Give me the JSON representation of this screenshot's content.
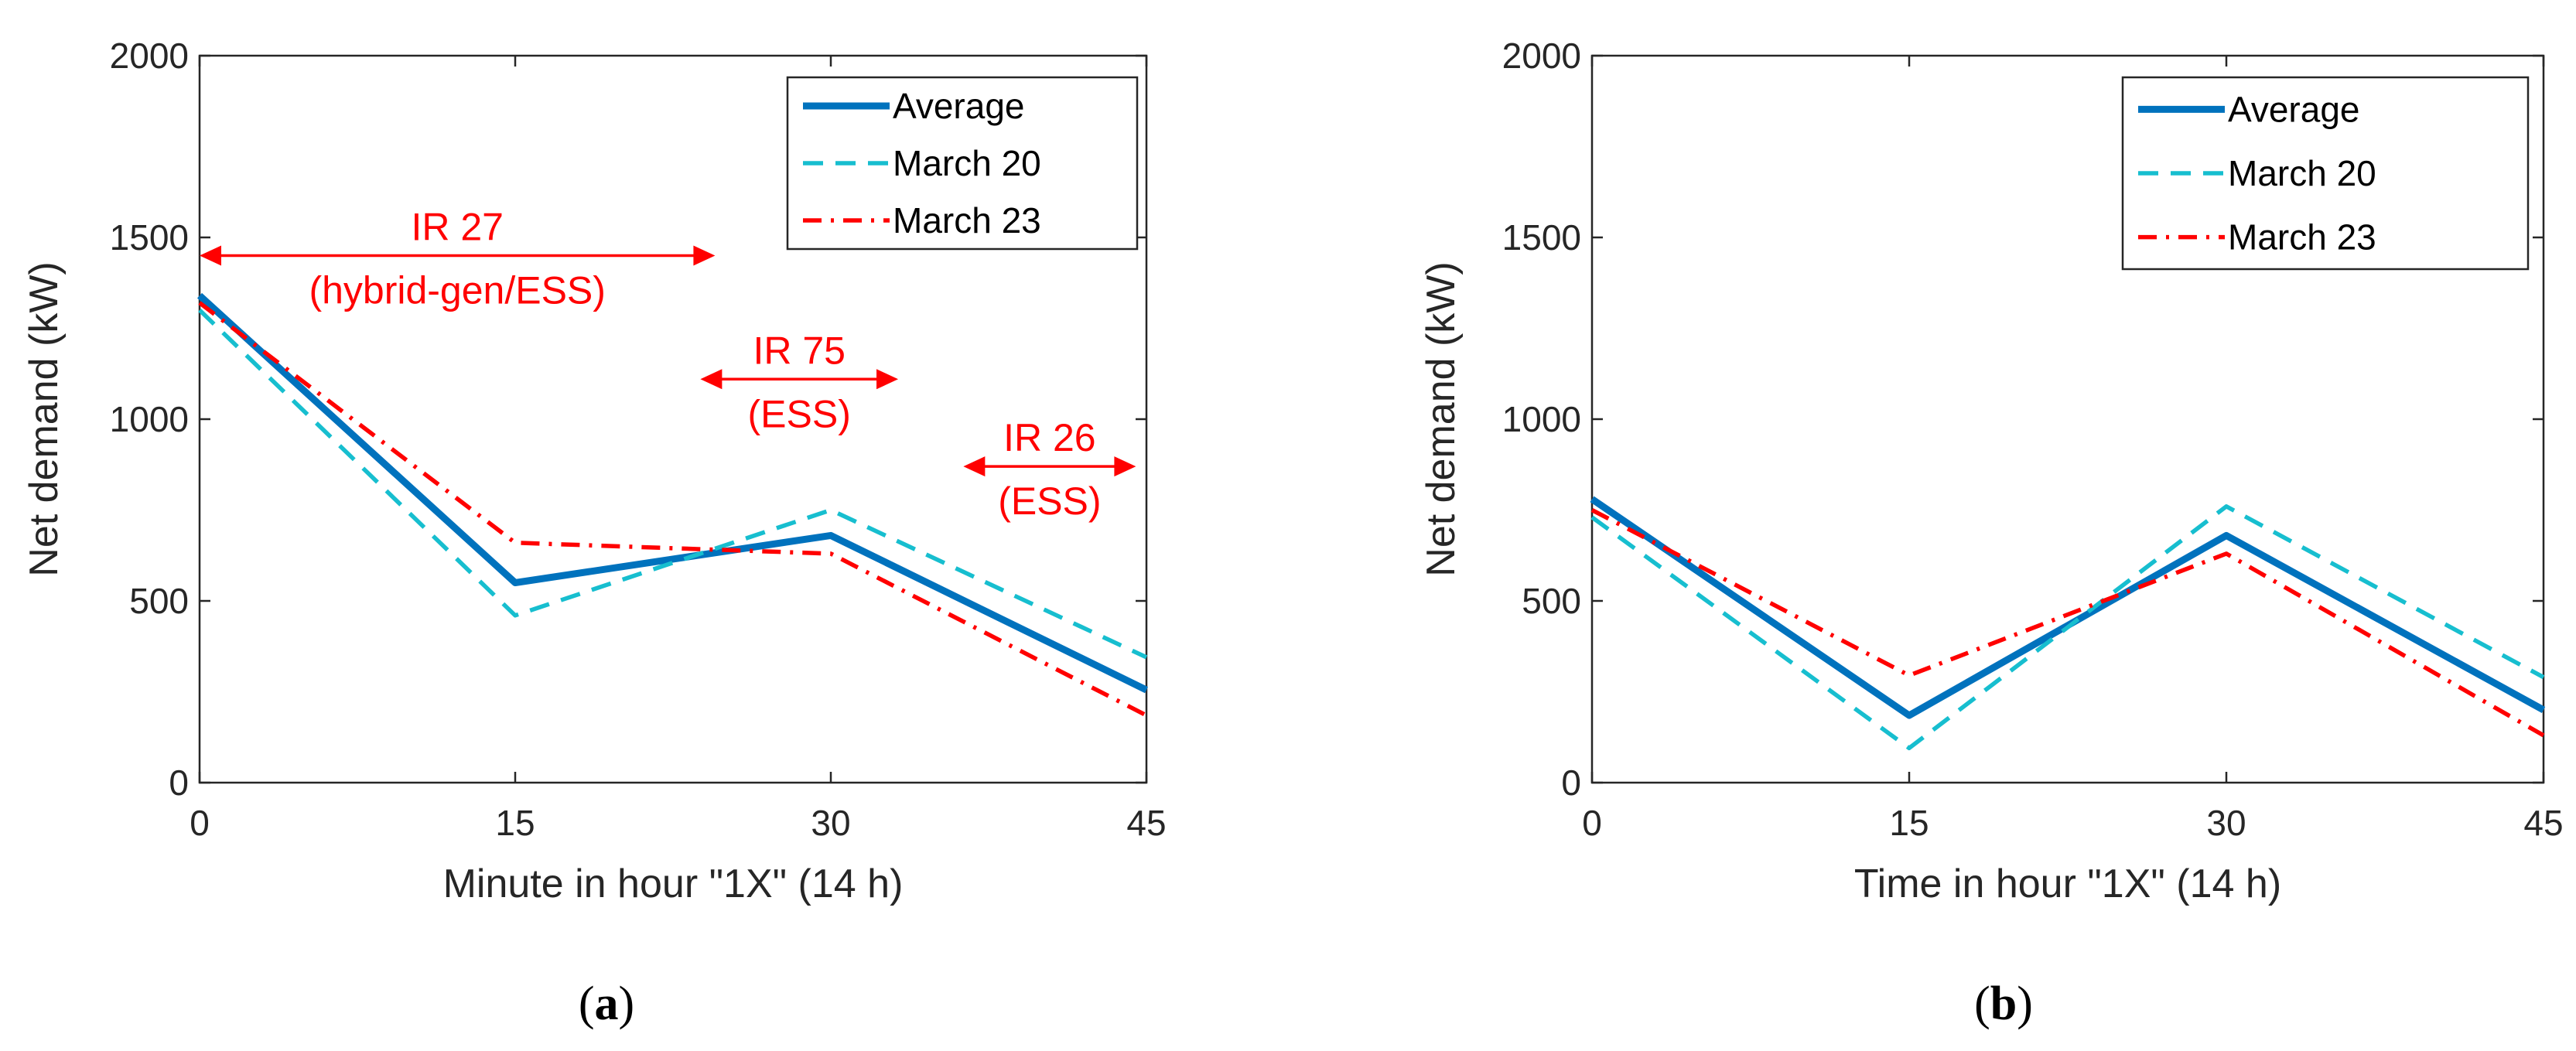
{
  "chart_data": [
    {
      "type": "line",
      "panel": "a",
      "caption": "a",
      "xlabel": "Minute in hour \"1X\" (14 h)",
      "ylabel": "Net demand (kW)",
      "x": [
        0,
        15,
        30,
        45
      ],
      "xlim": [
        0,
        45
      ],
      "ylim": [
        0,
        2000
      ],
      "xticks": [
        "0",
        "15",
        "30",
        "45"
      ],
      "yticks": [
        "0",
        "500",
        "1000",
        "1500",
        "2000"
      ],
      "grid": false,
      "legend_position": "top-right",
      "series": [
        {
          "name": "Average",
          "values": [
            1340,
            550,
            680,
            255
          ],
          "color": "#0072BD",
          "style": "solid"
        },
        {
          "name": "March 20",
          "values": [
            1300,
            460,
            750,
            345
          ],
          "color": "#17BECF",
          "style": "dashed"
        },
        {
          "name": "March 23",
          "values": [
            1320,
            660,
            630,
            185
          ],
          "color": "#FF0000",
          "style": "dashdot"
        }
      ],
      "annotations": [
        {
          "lines": [
            "IR 27",
            "(hybrid-gen/ESS)"
          ],
          "x_range": [
            0,
            24.5
          ],
          "y": 1450,
          "color": "#FF0000"
        },
        {
          "lines": [
            "IR 75",
            "(ESS)"
          ],
          "x_range": [
            23.8,
            33.2
          ],
          "y": 1110,
          "color": "#FF0000"
        },
        {
          "lines": [
            "IR 26",
            "(ESS)"
          ],
          "x_range": [
            36.3,
            44.5
          ],
          "y": 870,
          "color": "#FF0000"
        }
      ]
    },
    {
      "type": "line",
      "panel": "b",
      "caption": "b",
      "xlabel": "Time in hour \"1X\" (14 h)",
      "ylabel": "Net demand (kW)",
      "x": [
        0,
        15,
        30,
        45
      ],
      "xlim": [
        0,
        45
      ],
      "ylim": [
        0,
        2000
      ],
      "xticks": [
        "0",
        "15",
        "30",
        "45"
      ],
      "yticks": [
        "0",
        "500",
        "1000",
        "1500",
        "2000"
      ],
      "grid": false,
      "legend_position": "top-right",
      "series": [
        {
          "name": "Average",
          "values": [
            780,
            185,
            680,
            200
          ],
          "color": "#0072BD",
          "style": "solid"
        },
        {
          "name": "March 20",
          "values": [
            730,
            95,
            760,
            290
          ],
          "color": "#17BECF",
          "style": "dashed"
        },
        {
          "name": "March 23",
          "values": [
            750,
            295,
            630,
            130
          ],
          "color": "#FF0000",
          "style": "dashdot"
        }
      ],
      "annotations": []
    }
  ]
}
